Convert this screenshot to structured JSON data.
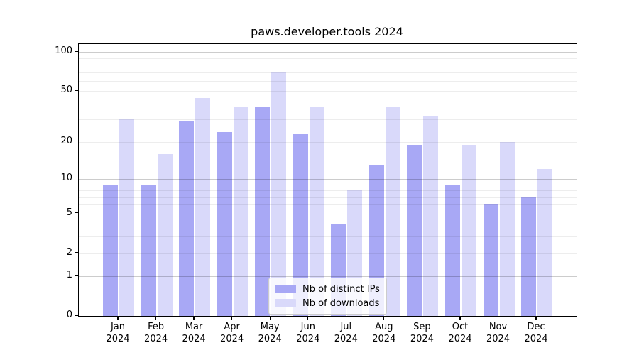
{
  "chart_data": {
    "type": "bar",
    "title": "paws.developer.tools 2024",
    "categories": [
      "Jan",
      "Feb",
      "Mar",
      "Apr",
      "May",
      "Jun",
      "Jul",
      "Aug",
      "Sep",
      "Oct",
      "Nov",
      "Dec"
    ],
    "year_label": "2024",
    "series": [
      {
        "name": "Nb of distinct IPs",
        "color": "#a8a8f5",
        "values": [
          9,
          9,
          29,
          24,
          38,
          23,
          4,
          13,
          19,
          9,
          6,
          7
        ]
      },
      {
        "name": "Nb of downloads",
        "color": "#d9d9fa",
        "values": [
          30,
          16,
          44,
          38,
          70,
          38,
          8,
          38,
          32,
          19,
          20,
          12
        ]
      }
    ],
    "yscale": "log10(1+x)",
    "yticks": [
      100,
      50,
      20,
      10,
      5,
      2,
      1,
      0
    ],
    "major_grid_values": [
      1,
      10,
      100
    ],
    "minor_grid_values": [
      2,
      3,
      4,
      5,
      6,
      7,
      8,
      9,
      20,
      30,
      40,
      50,
      60,
      70,
      80,
      90
    ],
    "ylim": [
      0,
      120
    ],
    "grid": "on",
    "legend_position": "lower center",
    "axis_color": "#000000",
    "xlabel": "",
    "ylabel": ""
  }
}
